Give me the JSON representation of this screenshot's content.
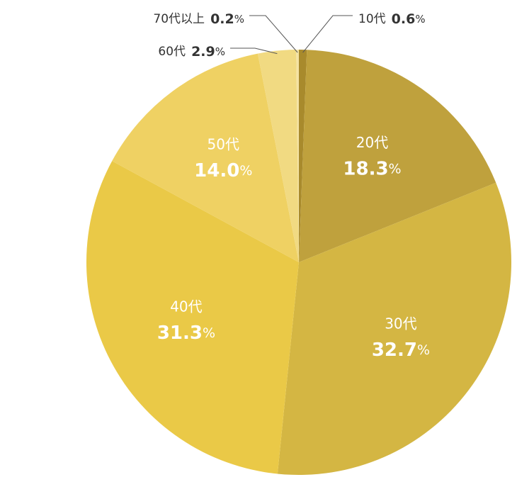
{
  "chart_data": {
    "type": "pie",
    "categories": [
      "10代",
      "20代",
      "30代",
      "40代",
      "50代",
      "60代",
      "70代以上"
    ],
    "values": [
      0.6,
      18.3,
      32.7,
      31.3,
      14.0,
      2.9,
      0.2
    ],
    "value_labels": [
      "0.6%",
      "18.3%",
      "32.7%",
      "31.3%",
      "14.0%",
      "2.9%",
      "0.2%"
    ],
    "colors": [
      "#a88a2c",
      "#bfa13d",
      "#d4b643",
      "#eac947",
      "#efd163",
      "#f1da82",
      "#f4e3a4"
    ]
  }
}
